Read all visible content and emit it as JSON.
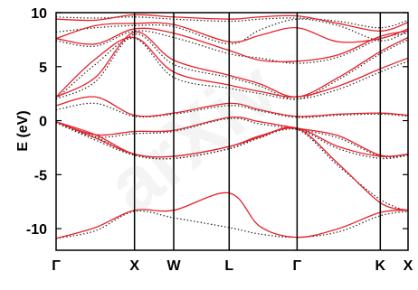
{
  "chart_data": {
    "type": "line",
    "title": "",
    "ylabel": "E (eV)",
    "xlabel": "",
    "ylim": [
      -12,
      10
    ],
    "y_ticks": [
      10,
      5,
      0,
      -5,
      -10
    ],
    "k_points": [
      {
        "label": "Γ",
        "x": 0.0
      },
      {
        "label": "X",
        "x": 1.0
      },
      {
        "label": "W",
        "x": 1.5
      },
      {
        "label": "L",
        "x": 2.207
      },
      {
        "label": "Γ",
        "x": 3.073
      },
      {
        "label": "K",
        "x": 4.134
      },
      {
        "label": "X",
        "x": 4.488
      }
    ],
    "series": [
      {
        "style": "solid",
        "color": "#e8202a",
        "bands": [
          [
            [
              0,
              -10.9
            ],
            [
              0.5,
              -9.9
            ],
            [
              1.0,
              -8.3
            ],
            [
              1.5,
              -8.3
            ],
            [
              2.207,
              -6.7
            ],
            [
              2.6,
              -9.8
            ],
            [
              3.073,
              -10.8
            ],
            [
              3.6,
              -10.0
            ],
            [
              4.134,
              -8.5
            ],
            [
              4.488,
              -8.3
            ]
          ],
          [
            [
              0,
              -0.1
            ],
            [
              0.5,
              -1.6
            ],
            [
              1.0,
              -3.1
            ],
            [
              1.5,
              -3.3
            ],
            [
              2.207,
              -2.4
            ],
            [
              2.6,
              -1.5
            ],
            [
              3.073,
              -0.7
            ],
            [
              3.6,
              -4.0
            ],
            [
              4.134,
              -7.6
            ],
            [
              4.488,
              -8.3
            ]
          ],
          [
            [
              0,
              -0.1
            ],
            [
              0.5,
              -1.3
            ],
            [
              1.0,
              -3.1
            ],
            [
              1.5,
              -3.3
            ],
            [
              2.207,
              -2.4
            ],
            [
              2.6,
              -1.4
            ],
            [
              3.073,
              -0.7
            ],
            [
              3.6,
              -2.4
            ],
            [
              4.134,
              -3.3
            ],
            [
              4.488,
              -3.1
            ]
          ],
          [
            [
              0,
              -0.1
            ],
            [
              0.5,
              -1.3
            ],
            [
              1.0,
              -1.0
            ],
            [
              1.5,
              -0.9
            ],
            [
              2.207,
              0.3
            ],
            [
              2.6,
              -0.1
            ],
            [
              3.073,
              -0.7
            ],
            [
              3.6,
              -1.4
            ],
            [
              4.134,
              -3.2
            ],
            [
              4.488,
              -3.1
            ]
          ],
          [
            [
              0,
              1.4
            ],
            [
              0.5,
              2.2
            ],
            [
              1.0,
              0.5
            ],
            [
              1.5,
              0.7
            ],
            [
              2.207,
              1.6
            ],
            [
              2.6,
              1.0
            ],
            [
              3.073,
              0.4
            ],
            [
              3.6,
              0.6
            ],
            [
              4.134,
              0.7
            ],
            [
              4.488,
              0.5
            ]
          ],
          [
            [
              0,
              2.2
            ],
            [
              0.5,
              5.7
            ],
            [
              1.0,
              7.7
            ],
            [
              1.5,
              4.5
            ],
            [
              2.207,
              3.3
            ],
            [
              2.6,
              2.7
            ],
            [
              3.073,
              2.2
            ],
            [
              3.6,
              3.2
            ],
            [
              4.134,
              4.8
            ],
            [
              4.488,
              5.8
            ]
          ],
          [
            [
              0,
              2.2
            ],
            [
              0.5,
              4.0
            ],
            [
              1.0,
              8.2
            ],
            [
              1.5,
              5.6
            ],
            [
              2.207,
              4.2
            ],
            [
              2.6,
              3.4
            ],
            [
              3.073,
              2.2
            ],
            [
              3.6,
              4.0
            ],
            [
              4.134,
              6.4
            ],
            [
              4.488,
              7.7
            ]
          ],
          [
            [
              0,
              7.6
            ],
            [
              0.5,
              7.1
            ],
            [
              1.0,
              8.5
            ],
            [
              1.5,
              8.1
            ],
            [
              2.207,
              6.5
            ],
            [
              2.6,
              5.6
            ],
            [
              3.073,
              5.5
            ],
            [
              3.6,
              6.1
            ],
            [
              4.134,
              7.8
            ],
            [
              4.488,
              8.3
            ]
          ],
          [
            [
              0,
              7.6
            ],
            [
              0.5,
              8.8
            ],
            [
              1.0,
              9.0
            ],
            [
              1.5,
              8.9
            ],
            [
              2.207,
              7.3
            ],
            [
              2.6,
              7.9
            ],
            [
              3.073,
              8.6
            ],
            [
              3.6,
              7.3
            ],
            [
              4.134,
              7.6
            ],
            [
              4.488,
              8.5
            ]
          ],
          [
            [
              0,
              9.4
            ],
            [
              0.5,
              9.3
            ],
            [
              1.0,
              9.8
            ],
            [
              1.5,
              9.6
            ],
            [
              2.207,
              9.4
            ],
            [
              2.6,
              9.6
            ],
            [
              3.073,
              9.7
            ],
            [
              3.6,
              9.0
            ],
            [
              4.134,
              8.3
            ],
            [
              4.488,
              9.1
            ]
          ]
        ]
      },
      {
        "style": "dotted",
        "color": "#1a1a1a",
        "bands": [
          [
            [
              0,
              -10.9
            ],
            [
              0.5,
              -10.2
            ],
            [
              1.0,
              -8.4
            ],
            [
              1.5,
              -9.0
            ],
            [
              2.207,
              -9.9
            ],
            [
              2.6,
              -10.5
            ],
            [
              3.073,
              -10.8
            ],
            [
              3.6,
              -10.3
            ],
            [
              4.134,
              -8.8
            ],
            [
              4.488,
              -8.4
            ]
          ],
          [
            [
              0,
              -0.2
            ],
            [
              0.5,
              -1.8
            ],
            [
              1.0,
              -3.2
            ],
            [
              1.5,
              -3.5
            ],
            [
              2.207,
              -2.6
            ],
            [
              2.6,
              -1.6
            ],
            [
              3.073,
              -0.8
            ],
            [
              3.6,
              -4.2
            ],
            [
              4.134,
              -7.3
            ],
            [
              4.488,
              -8.4
            ]
          ],
          [
            [
              0,
              -0.2
            ],
            [
              0.5,
              -1.5
            ],
            [
              1.0,
              -3.2
            ],
            [
              1.5,
              -3.5
            ],
            [
              2.207,
              -2.6
            ],
            [
              2.6,
              -1.5
            ],
            [
              3.073,
              -0.8
            ],
            [
              3.6,
              -2.6
            ],
            [
              4.134,
              -3.5
            ],
            [
              4.488,
              -3.2
            ]
          ],
          [
            [
              0,
              -0.2
            ],
            [
              0.5,
              -1.5
            ],
            [
              1.0,
              -1.2
            ],
            [
              1.5,
              -1.0
            ],
            [
              2.207,
              0.2
            ],
            [
              2.6,
              -0.3
            ],
            [
              3.073,
              -0.8
            ],
            [
              3.6,
              -1.6
            ],
            [
              4.134,
              -3.3
            ],
            [
              4.488,
              -3.2
            ]
          ],
          [
            [
              0,
              1.0
            ],
            [
              0.5,
              1.6
            ],
            [
              1.0,
              0.4
            ],
            [
              1.5,
              0.6
            ],
            [
              2.207,
              1.4
            ],
            [
              2.6,
              0.9
            ],
            [
              3.073,
              0.3
            ],
            [
              3.6,
              0.5
            ],
            [
              4.134,
              0.6
            ],
            [
              4.488,
              0.4
            ]
          ],
          [
            [
              0,
              2.0
            ],
            [
              0.5,
              5.2
            ],
            [
              1.0,
              7.6
            ],
            [
              1.5,
              4.0
            ],
            [
              2.207,
              3.0
            ],
            [
              2.6,
              2.5
            ],
            [
              3.073,
              2.0
            ],
            [
              3.6,
              2.9
            ],
            [
              4.134,
              4.5
            ],
            [
              4.488,
              5.5
            ]
          ],
          [
            [
              0,
              2.0
            ],
            [
              0.5,
              3.6
            ],
            [
              1.0,
              8.0
            ],
            [
              1.5,
              5.2
            ],
            [
              2.207,
              4.0
            ],
            [
              2.6,
              3.2
            ],
            [
              3.073,
              2.0
            ],
            [
              3.6,
              3.8
            ],
            [
              4.134,
              6.2
            ],
            [
              4.488,
              7.5
            ]
          ],
          [
            [
              0,
              7.4
            ],
            [
              0.5,
              6.9
            ],
            [
              1.0,
              8.3
            ],
            [
              1.5,
              7.7
            ],
            [
              2.207,
              6.2
            ],
            [
              2.6,
              5.8
            ],
            [
              3.073,
              5.3
            ],
            [
              3.6,
              5.9
            ],
            [
              4.134,
              7.6
            ],
            [
              4.488,
              8.1
            ]
          ],
          [
            [
              0,
              8.2
            ],
            [
              0.5,
              8.6
            ],
            [
              1.0,
              8.8
            ],
            [
              1.5,
              8.7
            ],
            [
              2.207,
              7.1
            ],
            [
              2.6,
              8.4
            ],
            [
              3.073,
              9.4
            ],
            [
              3.6,
              8.8
            ],
            [
              4.134,
              7.4
            ],
            [
              4.488,
              8.3
            ]
          ],
          [
            [
              0,
              9.6
            ],
            [
              0.5,
              9.5
            ],
            [
              1.0,
              9.6
            ],
            [
              1.5,
              9.4
            ],
            [
              2.207,
              9.2
            ],
            [
              2.6,
              9.4
            ],
            [
              3.073,
              9.5
            ],
            [
              3.6,
              9.2
            ],
            [
              4.134,
              8.6
            ],
            [
              4.488,
              9.3
            ]
          ]
        ]
      }
    ],
    "grid": false,
    "legend": "none"
  }
}
